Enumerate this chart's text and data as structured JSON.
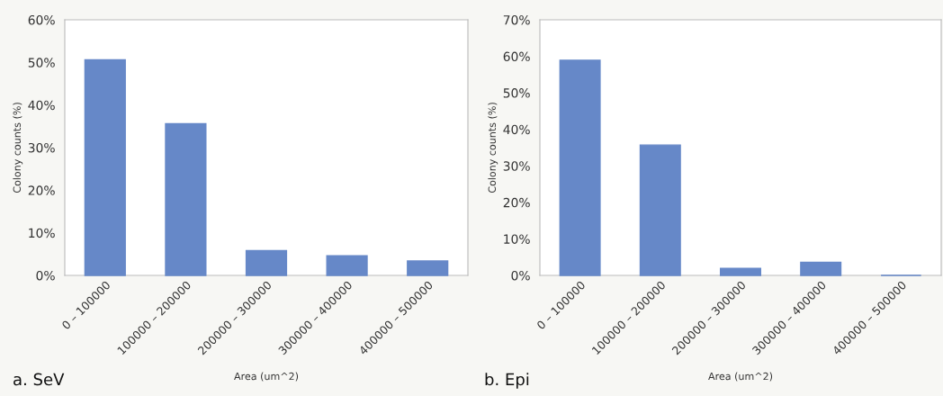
{
  "chart_data": [
    {
      "type": "bar",
      "title": "a. SeV",
      "xlabel": "Area (um^2)",
      "ylabel": "Colony counts (%)",
      "categories": [
        "0 – 100000",
        "100000 – 200000",
        "200000 – 300000",
        "300000 – 400000",
        "400000 – 500000"
      ],
      "values": [
        50.6,
        35.6,
        5.8,
        4.6,
        3.4
      ],
      "color": "#6688c8",
      "ylim": [
        0,
        60
      ],
      "yticks": [
        {
          "value": 0,
          "label": "0%"
        },
        {
          "value": 10,
          "label": "10%"
        },
        {
          "value": 20,
          "label": "20%"
        },
        {
          "value": 30,
          "label": "30%"
        },
        {
          "value": 40,
          "label": "40%"
        },
        {
          "value": 50,
          "label": "50%"
        },
        {
          "value": 60,
          "label": "60%"
        }
      ],
      "grid": false
    },
    {
      "type": "bar",
      "title": "b. Epi",
      "xlabel": "Area (um^2)",
      "ylabel": "Colony counts (%)",
      "categories": [
        "0 – 100000",
        "100000 – 200000",
        "200000 – 300000",
        "300000 – 400000",
        "400000 – 500000"
      ],
      "values": [
        58.9,
        35.7,
        1.9,
        3.6,
        0
      ],
      "color": "#6688c8",
      "ylim": [
        0,
        70
      ],
      "yticks": [
        {
          "value": 0,
          "label": "0%"
        },
        {
          "value": 10,
          "label": "10%"
        },
        {
          "value": 20,
          "label": "20%"
        },
        {
          "value": 30,
          "label": "30%"
        },
        {
          "value": 40,
          "label": "40%"
        },
        {
          "value": 50,
          "label": "50%"
        },
        {
          "value": 60,
          "label": "60%"
        },
        {
          "value": 70,
          "label": "70%"
        }
      ],
      "grid": false
    }
  ]
}
